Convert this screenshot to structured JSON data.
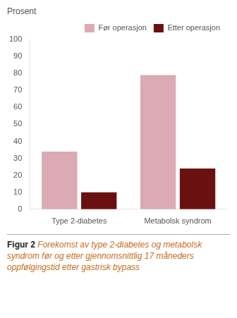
{
  "chart_data": {
    "type": "bar",
    "ylabel": "Prosent",
    "categories": [
      "Type 2-diabetes",
      "Metabolsk syndrom"
    ],
    "series": [
      {
        "name": "Før operasjon",
        "color": "#dbaab4",
        "values": [
          34,
          79
        ]
      },
      {
        "name": "Etter operasjon",
        "color": "#6b1010",
        "values": [
          10,
          24
        ]
      }
    ],
    "ylim": [
      0,
      100
    ],
    "yticks": [
      0,
      10,
      20,
      30,
      40,
      50,
      60,
      70,
      80,
      90,
      100
    ],
    "grid": false,
    "legend": "upper right",
    "annotations": [
      "Figur 2",
      "Forekomst av type 2-diabetes og metabolsk syndrom før og etter gjennomsnittlig 17 måneders oppfølgingstid etter gastrisk bypass"
    ]
  }
}
